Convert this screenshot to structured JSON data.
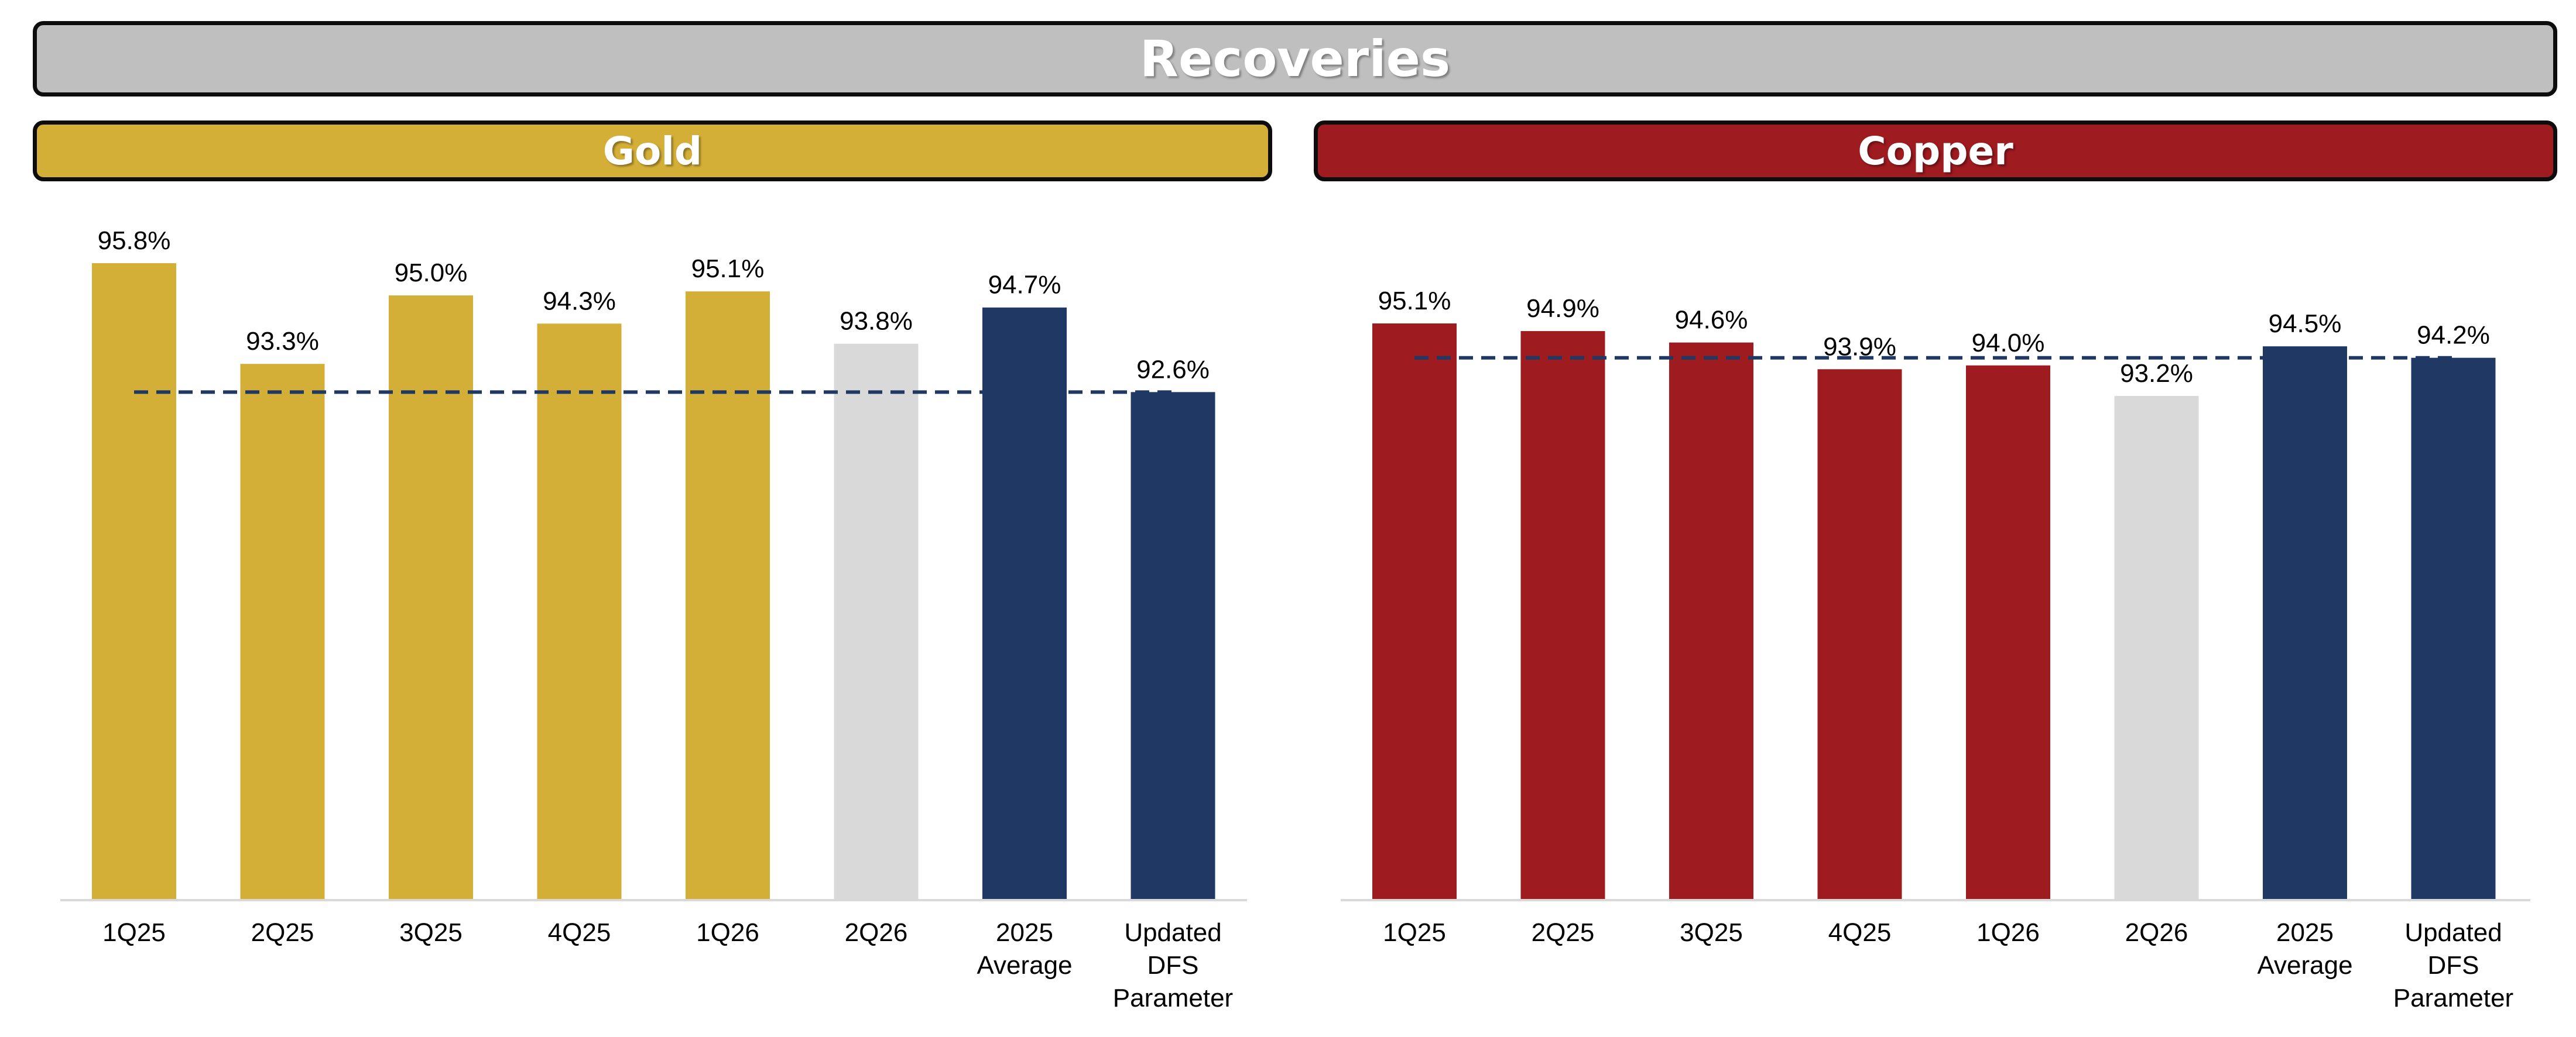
{
  "header": {
    "title": "Recoveries",
    "color": "#bfbfbf"
  },
  "panels": {
    "gold": {
      "title": "Gold",
      "color": "#d4af37"
    },
    "copper": {
      "title": "Copper",
      "color": "#9e1b20"
    }
  },
  "colors": {
    "gold_bar": "#d4af37",
    "copper_bar": "#9e1b20",
    "projection_bar": "#d9d9d9",
    "reference_bar": "#1f3864",
    "reference_line": "#1f3864",
    "axis": "#d9d9d9",
    "label_text": "#000000"
  },
  "chart_data": [
    {
      "type": "bar",
      "panel": "Gold",
      "categories": [
        "1Q25",
        "2Q25",
        "3Q25",
        "4Q25",
        "1Q26",
        "2Q26",
        "2025 Average",
        "Updated DFS Parameter"
      ],
      "category_lines": [
        [
          "1Q25"
        ],
        [
          "2Q25"
        ],
        [
          "3Q25"
        ],
        [
          "4Q25"
        ],
        [
          "1Q26"
        ],
        [
          "2Q26"
        ],
        [
          "2025",
          "Average"
        ],
        [
          "Updated",
          "DFS",
          "Parameter"
        ]
      ],
      "values": [
        95.8,
        93.3,
        95.0,
        94.3,
        95.1,
        93.8,
        94.7,
        92.6
      ],
      "data_labels": [
        "95.8%",
        "93.3%",
        "95.0%",
        "94.3%",
        "95.1%",
        "93.8%",
        "94.7%",
        "92.6%"
      ],
      "bar_kinds": [
        "actual",
        "actual",
        "actual",
        "actual",
        "actual",
        "projection",
        "reference",
        "reference"
      ],
      "reference_line": 92.6,
      "ylim": [
        80,
        96.5
      ],
      "grid": false
    },
    {
      "type": "bar",
      "panel": "Copper",
      "categories": [
        "1Q25",
        "2Q25",
        "3Q25",
        "4Q25",
        "1Q26",
        "2Q26",
        "2025 Average",
        "Updated DFS Parameter"
      ],
      "category_lines": [
        [
          "1Q25"
        ],
        [
          "2Q25"
        ],
        [
          "3Q25"
        ],
        [
          "4Q25"
        ],
        [
          "1Q26"
        ],
        [
          "2Q26"
        ],
        [
          "2025",
          "Average"
        ],
        [
          "Updated",
          "DFS",
          "Parameter"
        ]
      ],
      "values": [
        95.1,
        94.9,
        94.6,
        93.9,
        94.0,
        93.2,
        94.5,
        94.2
      ],
      "data_labels": [
        "95.1%",
        "94.9%",
        "94.6%",
        "93.9%",
        "94.0%",
        "93.2%",
        "94.5%",
        "94.2%"
      ],
      "bar_kinds": [
        "actual",
        "actual",
        "actual",
        "actual",
        "actual",
        "projection",
        "reference",
        "reference"
      ],
      "reference_line": 94.2,
      "ylim": [
        80,
        96.0
      ],
      "grid": false
    }
  ]
}
